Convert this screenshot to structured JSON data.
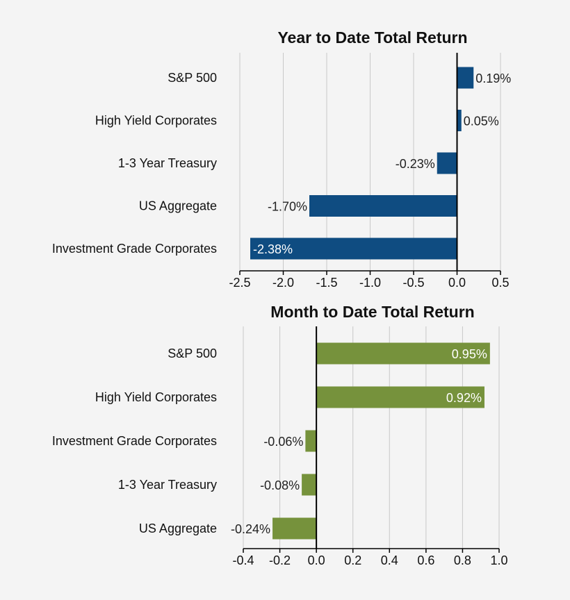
{
  "chart_data": [
    {
      "type": "bar",
      "orientation": "horizontal",
      "title": "Year to Date Total Return",
      "categories": [
        "S&P 500",
        "High Yield Corporates",
        "1-3 Year Treasury",
        "US Aggregate",
        "Investment Grade Corporates"
      ],
      "values": [
        0.19,
        0.05,
        -0.23,
        -1.7,
        -2.38
      ],
      "value_labels": [
        "0.19%",
        "0.05%",
        "-0.23%",
        "-1.70%",
        "-2.38%"
      ],
      "xlim": [
        -2.5,
        0.5
      ],
      "xticks": [
        -2.5,
        -2.0,
        -1.5,
        -1.0,
        -0.5,
        0.0,
        0.5
      ],
      "xtick_labels": [
        "-2.5",
        "-2.0",
        "-1.5",
        "-1.0",
        "-0.5",
        "0.0",
        "0.5"
      ],
      "grid": true,
      "color": "#0f4c81",
      "xlabel": "",
      "ylabel": ""
    },
    {
      "type": "bar",
      "orientation": "horizontal",
      "title": "Month to Date Total Return",
      "categories": [
        "S&P 500",
        "High Yield Corporates",
        "Investment Grade Corporates",
        "1-3 Year Treasury",
        "US Aggregate"
      ],
      "values": [
        0.95,
        0.92,
        -0.06,
        -0.08,
        -0.24
      ],
      "value_labels": [
        "0.95%",
        "0.92%",
        "-0.06%",
        "-0.08%",
        "-0.24%"
      ],
      "xlim": [
        -0.4,
        1.0
      ],
      "xticks": [
        -0.4,
        -0.2,
        0.0,
        0.2,
        0.4,
        0.6,
        0.8,
        1.0
      ],
      "xtick_labels": [
        "-0.4",
        "-0.2",
        "0.0",
        "0.2",
        "0.4",
        "0.6",
        "0.8",
        "1.0"
      ],
      "grid": true,
      "color": "#76923c",
      "xlabel": "",
      "ylabel": ""
    }
  ]
}
